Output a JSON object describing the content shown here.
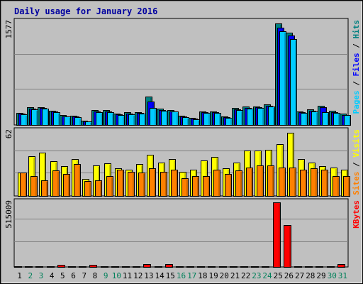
{
  "chart_data": [
    {
      "type": "bar",
      "title": "Daily usage for January 2016",
      "categories": [
        "1",
        "2",
        "3",
        "4",
        "5",
        "6",
        "7",
        "8",
        "9",
        "10",
        "11",
        "12",
        "13",
        "14",
        "15",
        "16",
        "17",
        "18",
        "19",
        "20",
        "21",
        "22",
        "23",
        "24",
        "25",
        "26",
        "27",
        "28",
        "29",
        "30",
        "31"
      ],
      "weekend_days": [
        "2",
        "3",
        "9",
        "10",
        "16",
        "17",
        "23",
        "24",
        "30",
        "31"
      ],
      "ylim": [
        0,
        1577
      ],
      "ytick_label": "1577",
      "legend": [
        "Pages",
        "Files",
        "Hits"
      ],
      "series": [
        {
          "name": "Hits",
          "color": "#008080",
          "values": [
            185,
            270,
            275,
            220,
            150,
            140,
            65,
            225,
            225,
            175,
            190,
            195,
            430,
            250,
            230,
            140,
            105,
            210,
            210,
            130,
            260,
            280,
            285,
            310,
            1540,
            1400,
            210,
            235,
            295,
            215,
            170
          ]
        },
        {
          "name": "Files",
          "color": "#0000ff",
          "values": [
            170,
            250,
            260,
            200,
            130,
            125,
            55,
            200,
            200,
            160,
            175,
            180,
            360,
            230,
            210,
            125,
            95,
            190,
            190,
            115,
            240,
            260,
            265,
            295,
            1480,
            1360,
            190,
            215,
            265,
            195,
            155
          ]
        },
        {
          "name": "Pages",
          "color": "#00ccff",
          "values": [
            160,
            240,
            250,
            190,
            125,
            115,
            50,
            190,
            190,
            150,
            165,
            170,
            255,
            220,
            200,
            115,
            90,
            180,
            180,
            105,
            230,
            250,
            255,
            285,
            1430,
            1310,
            180,
            205,
            190,
            185,
            150
          ]
        }
      ]
    },
    {
      "type": "bar",
      "categories": [
        "1",
        "2",
        "3",
        "4",
        "5",
        "6",
        "7",
        "8",
        "9",
        "10",
        "11",
        "12",
        "13",
        "14",
        "15",
        "16",
        "17",
        "18",
        "19",
        "20",
        "21",
        "22",
        "23",
        "24",
        "25",
        "26",
        "27",
        "28",
        "29",
        "30",
        "31"
      ],
      "ylim": [
        0,
        62
      ],
      "ytick_label": "62",
      "legend": [
        "Sites",
        "Visits"
      ],
      "series": [
        {
          "name": "Visits",
          "color": "#ffff00",
          "values": [
            22,
            38,
            41,
            33,
            28,
            35,
            16,
            29,
            31,
            26,
            25,
            30,
            39,
            32,
            35,
            23,
            25,
            34,
            37,
            26,
            32,
            43,
            43,
            44,
            49,
            60,
            35,
            32,
            28,
            27,
            25
          ]
        },
        {
          "name": "Sites",
          "color": "#ff8000",
          "values": [
            22,
            19,
            15,
            24,
            21,
            30,
            14,
            15,
            19,
            25,
            23,
            22,
            26,
            23,
            25,
            17,
            19,
            19,
            25,
            21,
            24,
            27,
            29,
            29,
            27,
            27,
            25,
            26,
            25,
            19,
            19
          ]
        }
      ]
    },
    {
      "type": "bar",
      "categories": [
        "1",
        "2",
        "3",
        "4",
        "5",
        "6",
        "7",
        "8",
        "9",
        "10",
        "11",
        "12",
        "13",
        "14",
        "15",
        "16",
        "17",
        "18",
        "19",
        "20",
        "21",
        "22",
        "23",
        "24",
        "25",
        "26",
        "27",
        "28",
        "29",
        "30",
        "31"
      ],
      "ylim": [
        0,
        515009
      ],
      "ytick_label": "515009",
      "legend": [
        "KBytes"
      ],
      "series": [
        {
          "name": "KBytes",
          "color": "#ff0000",
          "values": [
            7000,
            7000,
            7000,
            7000,
            15000,
            7000,
            7000,
            15000,
            7000,
            7000,
            7000,
            7000,
            20000,
            7000,
            20000,
            7000,
            7000,
            7000,
            7000,
            7000,
            7000,
            7000,
            7000,
            7000,
            510000,
            330000,
            7000,
            7000,
            7000,
            7000,
            20000
          ]
        }
      ]
    }
  ]
}
